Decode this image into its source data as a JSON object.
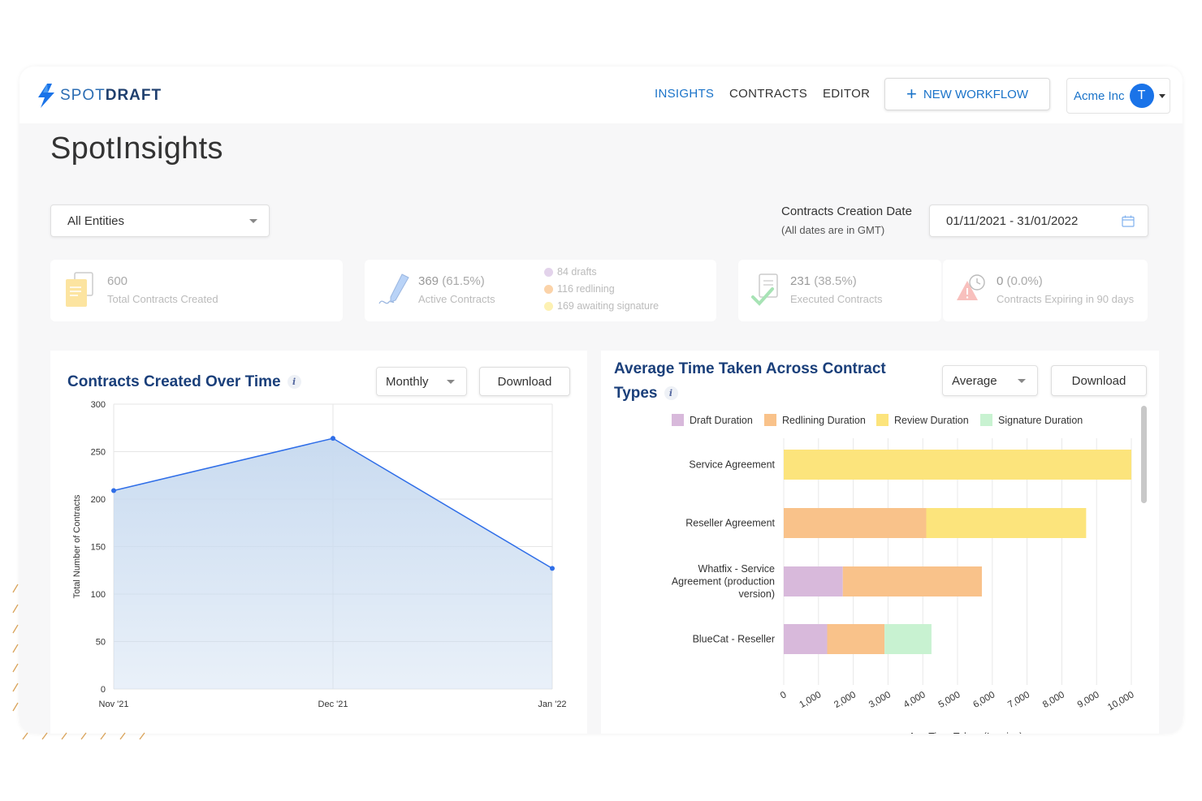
{
  "header": {
    "logo": {
      "part1": "SPOT",
      "part2": "DRAFT"
    },
    "nav": [
      {
        "label": "INSIGHTS",
        "active": true
      },
      {
        "label": "CONTRACTS",
        "active": false
      },
      {
        "label": "EDITOR",
        "active": false
      }
    ],
    "new_workflow_label": "NEW WORKFLOW",
    "account": {
      "name": "Acme Inc",
      "avatar_initial": "T"
    }
  },
  "page": {
    "title": "SpotInsights"
  },
  "filters": {
    "entity_select": "All Entities",
    "date_label": "Contracts Creation Date",
    "date_sub": "(All dates are in GMT)",
    "date_range": "01/11/2021 - 31/01/2022"
  },
  "stats": {
    "total": {
      "value": "600",
      "label": "Total Contracts Created"
    },
    "active": {
      "value": "369",
      "pct": "(61.5%)",
      "label": "Active Contracts",
      "breakdown": [
        {
          "text": "84 drafts",
          "color": "#e3d3eb"
        },
        {
          "text": "116 redlining",
          "color": "#fbd3a9"
        },
        {
          "text": "169 awaiting signature",
          "color": "#fdf1b3"
        }
      ]
    },
    "executed": {
      "value": "231",
      "pct": "(38.5%)",
      "label": "Executed Contracts"
    },
    "expiring": {
      "value": "0",
      "pct": "(0.0%)",
      "label": "Contracts Expiring in 90 days"
    }
  },
  "left_card": {
    "title": "Contracts Created Over Time",
    "period_select": "Monthly",
    "download_label": "Download"
  },
  "right_card": {
    "title_line1": "Average Time Taken Across Contract",
    "title_line2": "Types",
    "agg_select": "Average",
    "download_label": "Download"
  },
  "chart_data": [
    {
      "type": "area",
      "title": "Contracts Created Over Time",
      "x": [
        "Nov '21",
        "Dec '21",
        "Jan '22"
      ],
      "values": [
        209,
        264,
        127
      ],
      "ylabel": "Total Number of Contracts",
      "xlabel": "",
      "ylim": [
        0,
        300
      ],
      "yticks": [
        0,
        50,
        100,
        150,
        200,
        250,
        300
      ],
      "grid": true,
      "colors": {
        "line": "#2f6ee8",
        "fill": "#c9dbf0"
      }
    },
    {
      "type": "bar",
      "orientation": "horizontal",
      "stacked": true,
      "categories": [
        "Service Agreement",
        "Reseller Agreement",
        "Whatfix - Service Agreement (production version)",
        "BlueCat - Reseller"
      ],
      "category_lines": [
        [
          "Service Agreement"
        ],
        [
          "Reseller Agreement"
        ],
        [
          "Whatfix - Service",
          "Agreement (production",
          "version)"
        ],
        [
          "BlueCat - Reseller"
        ]
      ],
      "series": [
        {
          "name": "Draft Duration",
          "color": "#d8b9db",
          "values": [
            0,
            0,
            1700,
            1250
          ]
        },
        {
          "name": "Redlining Duration",
          "color": "#f9c28a",
          "values": [
            0,
            4100,
            4000,
            1650
          ]
        },
        {
          "name": "Review Duration",
          "color": "#fce47c",
          "values": [
            10000,
            4600,
            0,
            0
          ]
        },
        {
          "name": "Signature Duration",
          "color": "#c8f2d1",
          "values": [
            0,
            0,
            0,
            1350
          ]
        }
      ],
      "xlabel": "Avg Time Taken (In mins)",
      "ylabel": "",
      "xlim": [
        0,
        10000
      ],
      "xticks": [
        "0",
        "1,000",
        "2,000",
        "3,000",
        "4,000",
        "5,000",
        "6,000",
        "7,000",
        "8,000",
        "9,000",
        "10,000"
      ],
      "grid": true,
      "legend": "top"
    }
  ]
}
